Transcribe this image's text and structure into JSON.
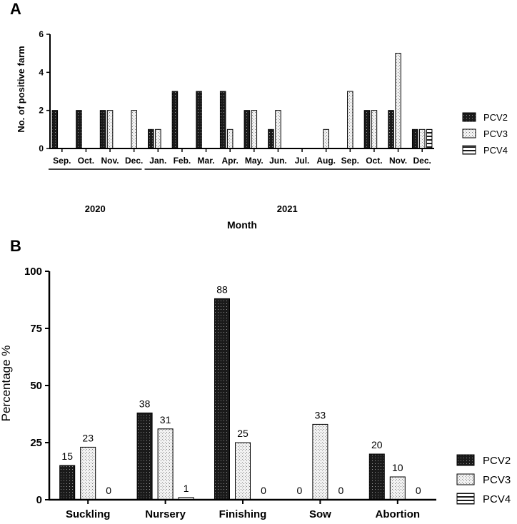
{
  "colors": {
    "pcv2": "#1a1a1a",
    "pcv3": "#ececec",
    "pcv4": "#ffffff",
    "axis": "#000000"
  },
  "chart_data": [
    {
      "panel": "A",
      "type": "bar",
      "title": "",
      "xlabel": "Month",
      "ylabel": "No. of positive farm",
      "ylim": [
        0,
        6
      ],
      "yticks": [
        "0",
        "2",
        "4",
        "6"
      ],
      "categories": [
        "Sep.",
        "Oct.",
        "Nov.",
        "Dec.",
        "Jan.",
        "Feb.",
        "Mar.",
        "Apr.",
        "May.",
        "Jun.",
        "Jul.",
        "Aug.",
        "Sep.",
        "Oct.",
        "Nov.",
        "Dec."
      ],
      "year_groups": [
        {
          "label": "2020",
          "from": 0,
          "to": 3
        },
        {
          "label": "2021",
          "from": 4,
          "to": 15
        }
      ],
      "series": [
        {
          "name": "PCV2",
          "values": [
            2,
            2,
            2,
            0,
            1,
            3,
            3,
            3,
            2,
            1,
            0,
            0,
            0,
            2,
            2,
            1
          ]
        },
        {
          "name": "PCV3",
          "values": [
            0,
            0,
            2,
            2,
            1,
            0,
            0,
            1,
            2,
            2,
            0,
            1,
            3,
            2,
            5,
            1
          ]
        },
        {
          "name": "PCV4",
          "values": [
            0,
            0,
            0,
            0,
            0,
            0,
            0,
            0,
            0,
            0,
            0,
            0,
            0,
            0,
            0,
            1
          ]
        }
      ],
      "legend": [
        "PCV2",
        "PCV3",
        "PCV4"
      ],
      "legend_position": "right"
    },
    {
      "panel": "B",
      "type": "bar",
      "title": "",
      "xlabel": "",
      "ylabel": "Percentage %",
      "ylim": [
        0,
        100
      ],
      "yticks": [
        "0",
        "25",
        "50",
        "75",
        "100"
      ],
      "categories": [
        "Suckling",
        "Nursery",
        "Finishing",
        "Sow",
        "Abortion"
      ],
      "series": [
        {
          "name": "PCV2",
          "values": [
            15,
            38,
            88,
            0,
            20
          ],
          "labels": [
            "15",
            "38",
            "88",
            "0",
            "20"
          ]
        },
        {
          "name": "PCV3",
          "values": [
            23,
            31,
            25,
            33,
            10
          ],
          "labels": [
            "23",
            "31",
            "25",
            "33",
            "10"
          ]
        },
        {
          "name": "PCV4",
          "values": [
            0,
            1,
            0,
            0,
            0
          ],
          "labels": [
            "0",
            "1",
            "0",
            "0",
            "0"
          ]
        }
      ],
      "legend": [
        "PCV2",
        "PCV3",
        "PCV4"
      ],
      "legend_position": "bottom-right"
    }
  ]
}
